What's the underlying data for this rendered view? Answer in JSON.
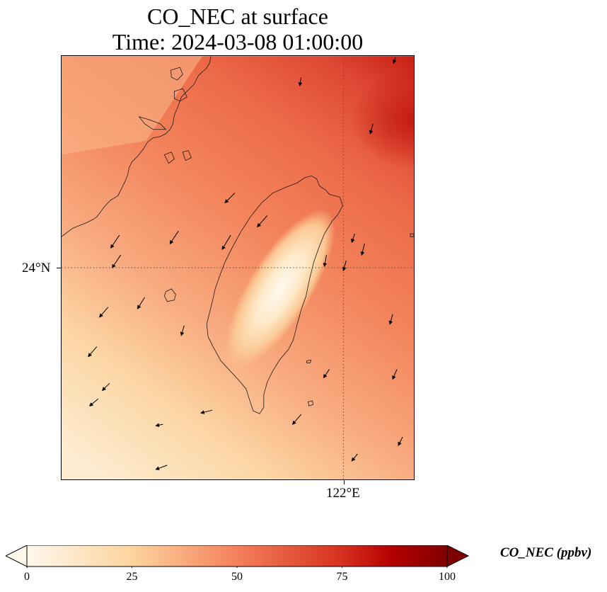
{
  "title": {
    "line1": "CO_NEC at surface",
    "line2": "Time: 2024-03-08 01:00:00"
  },
  "map": {
    "lat_label": "24°N",
    "lon_label": "122°E",
    "gridline_style": "dotted",
    "field": "CO_NEC",
    "overlay": "wind vectors",
    "coastline": "Taiwan and Fujian coast"
  },
  "colorbar": {
    "label": "CO_NEC (ppbv)",
    "colormap": "OrRd",
    "min": 0,
    "max": 100,
    "extend": "both",
    "ticks": [
      "0",
      "25",
      "50",
      "75",
      "100"
    ],
    "colors": [
      "#fff7ec",
      "#fdd49e",
      "#f4805b",
      "#d7301f",
      "#7f0000"
    ]
  }
}
